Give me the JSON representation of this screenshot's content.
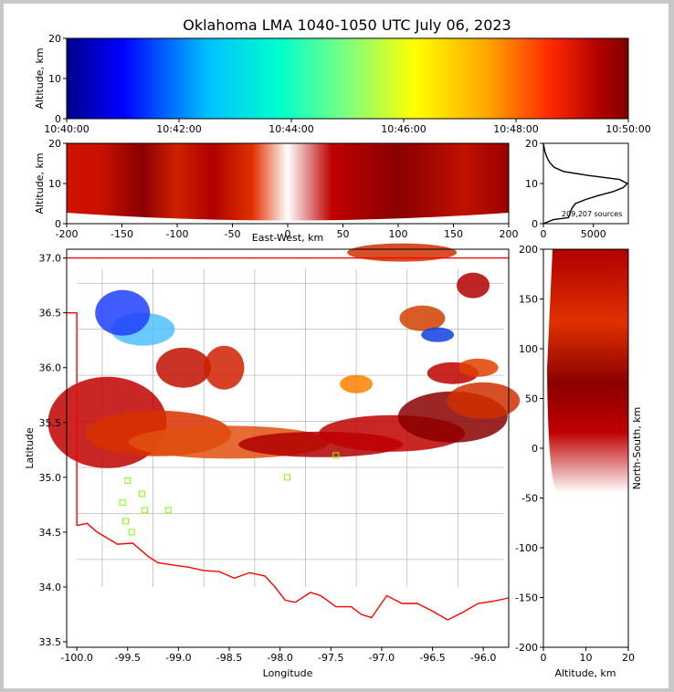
{
  "chart_data": {
    "type": "scatter",
    "title": "Oklahoma LMA 1040-1050 UTC July 06, 2023",
    "source_count_label": "209,207 sources",
    "colormap": [
      "#00008b",
      "#0000ff",
      "#00bfff",
      "#00ffcc",
      "#7fff7f",
      "#ffff00",
      "#ffa500",
      "#ff2a00",
      "#b00000",
      "#800000"
    ],
    "panels": {
      "time_height": {
        "ylabel": "Altitude, km",
        "xlim": [
          "10:40:00",
          "10:50:00"
        ],
        "ylim": [
          0,
          20
        ],
        "xticks": [
          "10:40:00",
          "10:42:00",
          "10:44:00",
          "10:46:00",
          "10:48:00",
          "10:50:00"
        ],
        "yticks": [
          0,
          10,
          20
        ]
      },
      "ew_height": {
        "xlabel": "East-West, km",
        "ylabel": "Altitude, km",
        "xlim": [
          -200,
          200
        ],
        "ylim": [
          0,
          20
        ],
        "xticks": [
          -200,
          -150,
          -100,
          -50,
          0,
          50,
          100,
          150,
          200
        ],
        "yticks": [
          0,
          10,
          20
        ]
      },
      "histogram": {
        "xlim": [
          0,
          8500
        ],
        "ylim": [
          0,
          20
        ],
        "xticks": [
          0,
          5000
        ],
        "yticks": [
          0,
          10,
          20
        ],
        "profile": [
          [
            0,
            0
          ],
          [
            1,
            1000
          ],
          [
            1.5,
            2500
          ],
          [
            2,
            2600
          ],
          [
            3,
            2700
          ],
          [
            4,
            2900
          ],
          [
            5,
            3200
          ],
          [
            6,
            4200
          ],
          [
            7,
            5500
          ],
          [
            8,
            7000
          ],
          [
            9,
            8000
          ],
          [
            10,
            8400
          ],
          [
            11,
            7600
          ],
          [
            12,
            4500
          ],
          [
            13,
            2000
          ],
          [
            14,
            1100
          ],
          [
            15,
            700
          ],
          [
            16,
            450
          ],
          [
            17,
            280
          ],
          [
            18,
            150
          ],
          [
            19,
            60
          ],
          [
            20,
            0
          ]
        ]
      },
      "map": {
        "xlabel": "Longitude",
        "ylabel": "Latitude",
        "xlim": [
          -100.1,
          -95.75
        ],
        "ylim": [
          33.45,
          37.08
        ],
        "xticks": [
          "-100.0",
          "-99.5",
          "-99.0",
          "-98.5",
          "-98.0",
          "-97.5",
          "-97.0",
          "-96.5",
          "-96.0"
        ],
        "yticks": [
          "33.5",
          "34.0",
          "34.5",
          "35.0",
          "35.5",
          "36.0",
          "36.5",
          "37.0"
        ],
        "stations": [
          [
            -99.55,
            34.77
          ],
          [
            -99.52,
            34.6
          ],
          [
            -99.46,
            34.5
          ],
          [
            -99.36,
            34.85
          ],
          [
            -99.33,
            34.7
          ],
          [
            -99.1,
            34.7
          ],
          [
            -99.5,
            34.97
          ],
          [
            -97.93,
            35.0
          ],
          [
            -97.45,
            35.2
          ]
        ],
        "border_north_lat": 37.0,
        "border_west_lon": -100.0,
        "red_river": [
          [
            -100.0,
            34.56
          ],
          [
            -99.9,
            34.58
          ],
          [
            -99.8,
            34.5
          ],
          [
            -99.6,
            34.39
          ],
          [
            -99.45,
            34.4
          ],
          [
            -99.3,
            34.28
          ],
          [
            -99.2,
            34.22
          ],
          [
            -99.05,
            34.2
          ],
          [
            -98.9,
            34.18
          ],
          [
            -98.75,
            34.15
          ],
          [
            -98.6,
            34.14
          ],
          [
            -98.45,
            34.08
          ],
          [
            -98.3,
            34.13
          ],
          [
            -98.15,
            34.1
          ],
          [
            -98.05,
            34.0
          ],
          [
            -97.95,
            33.88
          ],
          [
            -97.85,
            33.86
          ],
          [
            -97.7,
            33.95
          ],
          [
            -97.6,
            33.92
          ],
          [
            -97.45,
            33.82
          ],
          [
            -97.3,
            33.82
          ],
          [
            -97.2,
            33.75
          ],
          [
            -97.1,
            33.72
          ],
          [
            -96.95,
            33.92
          ],
          [
            -96.8,
            33.85
          ],
          [
            -96.65,
            33.85
          ],
          [
            -96.5,
            33.78
          ],
          [
            -96.35,
            33.7
          ],
          [
            -96.2,
            33.77
          ],
          [
            -96.05,
            33.85
          ],
          [
            -95.9,
            33.87
          ],
          [
            -95.75,
            33.9
          ]
        ]
      },
      "ns_height": {
        "xlabel": "Altitude, km",
        "ylabel": "North-South, km",
        "xlim": [
          0,
          20
        ],
        "ylim": [
          -200,
          200
        ],
        "xticks": [
          0,
          10,
          20
        ],
        "yticks": [
          -200,
          -150,
          -100,
          -50,
          0,
          50,
          100,
          150,
          200
        ]
      }
    }
  }
}
